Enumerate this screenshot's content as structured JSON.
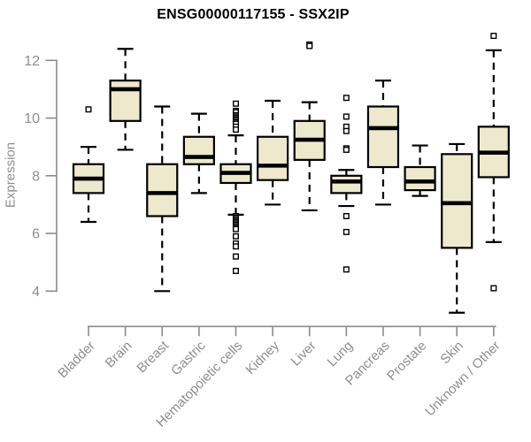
{
  "chart_data": {
    "type": "boxplot",
    "title": "ENSG00000117155 - SSX2IP",
    "ylabel": "Expression",
    "xlabel": "",
    "yticks": [
      4,
      6,
      8,
      10,
      12
    ],
    "ylim": [
      3.0,
      13.0
    ],
    "grid": false,
    "legend": false,
    "colors": {
      "box_fill": "#EEE9CD",
      "box_stroke": "#000000",
      "median": "#000000",
      "whisker": "#000000",
      "outlier_stroke": "#000000",
      "outlier_fill": "#ffffff",
      "axis": "#8b8b8b",
      "tick_label": "#8e8e8e",
      "title": "#000000",
      "background": "#ffffff"
    },
    "categories": [
      "Bladder",
      "Brain",
      "Breast",
      "Gastric",
      "Hematopoietic cells",
      "Kidney",
      "Liver",
      "Lung",
      "Pancreas",
      "Prostate",
      "Skin",
      "Unknown / Other"
    ],
    "series": [
      {
        "name": "Bladder",
        "whisker_low": 6.4,
        "q1": 7.4,
        "median": 7.9,
        "q3": 8.4,
        "whisker_high": 9.0,
        "outliers": [
          10.3
        ]
      },
      {
        "name": "Brain",
        "whisker_low": 8.9,
        "q1": 9.9,
        "median": 11.0,
        "q3": 11.3,
        "whisker_high": 12.4,
        "outliers": []
      },
      {
        "name": "Breast",
        "whisker_low": 4.0,
        "q1": 6.6,
        "median": 7.4,
        "q3": 8.4,
        "whisker_high": 10.4,
        "outliers": []
      },
      {
        "name": "Gastric",
        "whisker_low": 7.4,
        "q1": 8.4,
        "median": 8.65,
        "q3": 9.35,
        "whisker_high": 10.15,
        "outliers": []
      },
      {
        "name": "Hematopoietic cells",
        "whisker_low": 6.65,
        "q1": 7.75,
        "median": 8.1,
        "q3": 8.4,
        "whisker_high": 9.4,
        "outliers": [
          10.5,
          10.25,
          10.2,
          10.1,
          10.05,
          10.0,
          9.95,
          9.9,
          9.85,
          9.8,
          9.7,
          9.6,
          6.6,
          6.55,
          6.5,
          6.45,
          6.4,
          6.35,
          6.3,
          6.25,
          6.2,
          6.15,
          5.9,
          5.65,
          5.55,
          5.2,
          4.7
        ]
      },
      {
        "name": "Kidney",
        "whisker_low": 7.0,
        "q1": 7.85,
        "median": 8.35,
        "q3": 9.35,
        "whisker_high": 10.6,
        "outliers": []
      },
      {
        "name": "Liver",
        "whisker_low": 6.8,
        "q1": 8.55,
        "median": 9.25,
        "q3": 9.9,
        "whisker_high": 10.55,
        "outliers": [
          12.55,
          12.5
        ]
      },
      {
        "name": "Lung",
        "whisker_low": 6.95,
        "q1": 7.4,
        "median": 7.8,
        "q3": 8.0,
        "whisker_high": 8.2,
        "outliers": [
          10.7,
          10.05,
          9.7,
          9.55,
          8.95,
          8.9,
          6.6,
          6.05,
          4.75
        ]
      },
      {
        "name": "Pancreas",
        "whisker_low": 7.0,
        "q1": 8.3,
        "median": 9.65,
        "q3": 10.4,
        "whisker_high": 11.3,
        "outliers": []
      },
      {
        "name": "Prostate",
        "whisker_low": 7.3,
        "q1": 7.5,
        "median": 7.8,
        "q3": 8.3,
        "whisker_high": 9.05,
        "outliers": []
      },
      {
        "name": "Skin",
        "whisker_low": 3.25,
        "q1": 5.5,
        "median": 7.05,
        "q3": 8.75,
        "whisker_high": 9.1,
        "outliers": []
      },
      {
        "name": "Unknown / Other",
        "whisker_low": 5.7,
        "q1": 7.95,
        "median": 8.8,
        "q3": 9.7,
        "whisker_high": 12.35,
        "outliers": [
          12.85,
          4.1
        ]
      }
    ]
  }
}
